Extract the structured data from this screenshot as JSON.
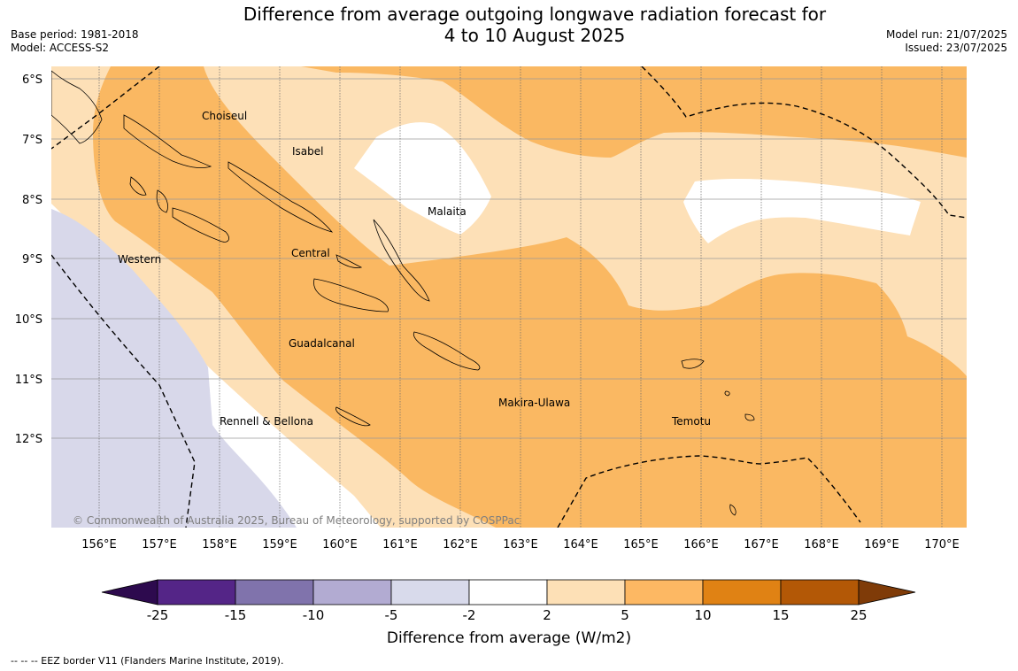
{
  "title_line1": "Difference from average outgoing longwave radiation forecast for",
  "title_line2": "4 to 10 August 2025",
  "base_period": "Base period: 1981-2018",
  "model": "Model: ACCESS-S2",
  "model_run": "Model run: 21/07/2025",
  "issued": "Issued: 23/07/2025",
  "copyright": "© Commonwealth of Australia 2025, Bureau of Meteorology, supported by COSPPac",
  "footnote": "--  --  -- EEZ border V11 (Flanders Marine Institute, 2019).",
  "map": {
    "lat_labels": [
      "6°S",
      "7°S",
      "8°S",
      "9°S",
      "10°S",
      "11°S",
      "12°S"
    ],
    "lon_labels": [
      "156°E",
      "157°E",
      "158°E",
      "159°E",
      "160°E",
      "161°E",
      "162°E",
      "163°E",
      "164°E",
      "165°E",
      "166°E",
      "167°E",
      "168°E",
      "169°E",
      "170°E"
    ],
    "regions": [
      "Choiseul",
      "Isabel",
      "Malaita",
      "Western",
      "Central",
      "Guadalcanal",
      "Makira-Ulawa",
      "Rennell & Bellona",
      "Temotu"
    ],
    "colors": {
      "lavender": "#d8d8ea",
      "white": "#ffffff",
      "light_orange": "#fde0b7",
      "mid_orange": "#fab862"
    }
  },
  "colorbar": {
    "title": "Difference from average (W/m2)",
    "ticks": [
      "-25",
      "-15",
      "-10",
      "-5",
      "-2",
      "2",
      "5",
      "10",
      "15",
      "25"
    ],
    "colors": [
      "#2d0a4e",
      "#542587",
      "#8073ac",
      "#b2abd2",
      "#d8daeb",
      "#ffffff",
      "#fde0b6",
      "#fdb863",
      "#e08214",
      "#b35806",
      "#7f3b08"
    ]
  }
}
